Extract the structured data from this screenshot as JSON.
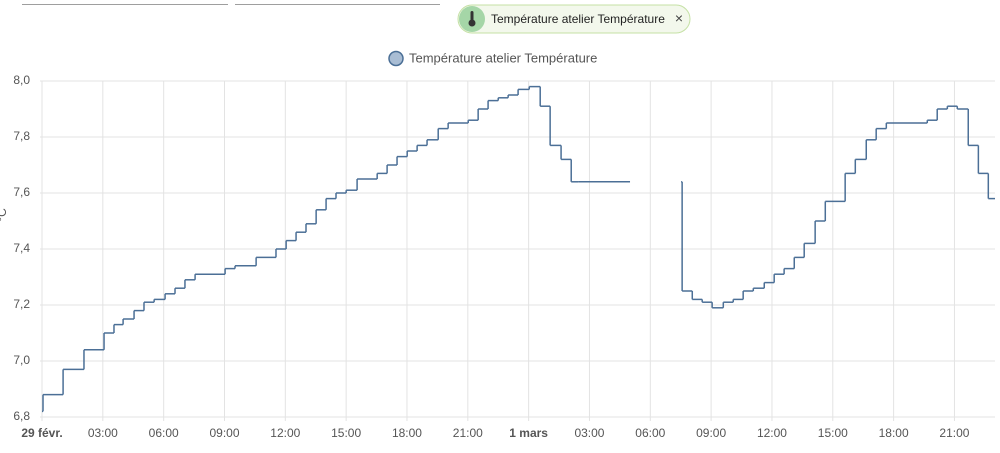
{
  "filter": {
    "label": "Température atelier Température",
    "close": "×"
  },
  "chart_data": {
    "type": "step",
    "ylabel": "°C",
    "x": [
      0,
      0.05,
      1.04,
      2.07,
      3.06,
      3.55,
      4.0,
      4.54,
      5.03,
      5.53,
      6.07,
      6.56,
      7.05,
      7.55,
      9.03,
      9.52,
      10.56,
      11.54,
      12.04,
      12.53,
      13.02,
      13.52,
      14.01,
      14.5,
      15.0,
      15.54,
      16.53,
      17.02,
      17.51,
      18.01,
      18.5,
      18.99,
      19.54,
      20.03,
      21.02,
      21.51,
      22.0,
      22.5,
      22.99,
      23.48,
      24.03,
      24.57,
      25.06,
      25.6,
      26.1,
      26.44,
      29.0,
      31.52,
      31.57,
      32.07,
      32.56,
      33.05,
      33.6,
      34.09,
      34.58,
      35.08,
      35.62,
      36.11,
      36.6,
      37.1,
      37.59,
      38.13,
      38.63,
      39.61,
      40.11,
      40.65,
      41.14,
      41.64,
      43.66,
      44.15,
      44.65,
      45.14,
      45.68,
      46.18,
      46.67,
      47.0
    ],
    "series": [
      {
        "name": "Température atelier Température",
        "color": "#4b6f96",
        "values": [
          6.82,
          6.88,
          6.97,
          7.04,
          7.1,
          7.13,
          7.15,
          7.18,
          7.21,
          7.22,
          7.24,
          7.26,
          7.29,
          7.31,
          7.33,
          7.34,
          7.37,
          7.4,
          7.43,
          7.46,
          7.49,
          7.54,
          7.58,
          7.6,
          7.61,
          7.65,
          7.67,
          7.7,
          7.73,
          7.75,
          7.77,
          7.79,
          7.83,
          7.85,
          7.86,
          7.9,
          7.93,
          7.94,
          7.95,
          7.97,
          7.98,
          7.91,
          7.77,
          7.72,
          7.64,
          7.64,
          null,
          7.64,
          7.25,
          7.22,
          7.21,
          7.19,
          7.21,
          7.22,
          7.25,
          7.26,
          7.28,
          7.31,
          7.33,
          7.37,
          7.42,
          7.5,
          7.57,
          7.67,
          7.72,
          7.79,
          7.83,
          7.85,
          7.86,
          7.9,
          7.91,
          7.9,
          7.77,
          7.67,
          7.58,
          7.58
        ]
      }
    ],
    "xlim": [
      0,
      47
    ],
    "xticks": [
      {
        "value": 0,
        "label": "29 févr."
      },
      {
        "value": 3,
        "label": "03:00"
      },
      {
        "value": 6,
        "label": "06:00"
      },
      {
        "value": 9,
        "label": "09:00"
      },
      {
        "value": 12,
        "label": "12:00"
      },
      {
        "value": 15,
        "label": "15:00"
      },
      {
        "value": 18,
        "label": "18:00"
      },
      {
        "value": 21,
        "label": "21:00"
      },
      {
        "value": 24,
        "label": "1 mars"
      },
      {
        "value": 27,
        "label": "03:00"
      },
      {
        "value": 30,
        "label": "06:00"
      },
      {
        "value": 33,
        "label": "09:00"
      },
      {
        "value": 36,
        "label": "12:00"
      },
      {
        "value": 39,
        "label": "15:00"
      },
      {
        "value": 42,
        "label": "18:00"
      },
      {
        "value": 45,
        "label": "21:00"
      }
    ],
    "ylim": [
      6.8,
      8.0
    ],
    "yticks": [
      {
        "value": 6.8,
        "label": "6,8"
      },
      {
        "value": 7.0,
        "label": "7,0"
      },
      {
        "value": 7.2,
        "label": "7,2"
      },
      {
        "value": 7.4,
        "label": "7,4"
      },
      {
        "value": 7.6,
        "label": "7,6"
      },
      {
        "value": 7.8,
        "label": "7,8"
      },
      {
        "value": 8.0,
        "label": "8,0"
      }
    ],
    "grid": true
  }
}
